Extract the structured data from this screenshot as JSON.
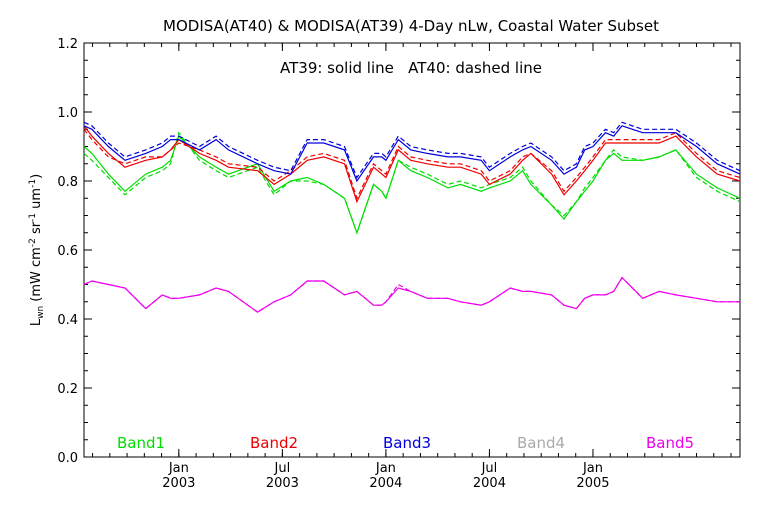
{
  "chart_data": {
    "type": "line",
    "title": "MODISA(AT40) & MODISA(AT39) 4-Day nLw, Coastal Water Subset",
    "annotation": "AT39: solid line   AT40: dashed line",
    "ylabel": "L_wn (mW cm^-2 sr^-1 um^-1)",
    "ylabel_parts": {
      "main": "L",
      "sub": "wn",
      "units_a": " (mW cm",
      "sup1": "-2",
      "units_b": " sr",
      "sup2": "-1",
      "units_c": " um",
      "sup3": "-1",
      "units_d": ")"
    },
    "ylim": [
      0.0,
      1.2
    ],
    "yticks": [
      "0.0",
      "0.2",
      "0.4",
      "0.6",
      "0.8",
      "1.0",
      "1.2"
    ],
    "xlim": [
      2002.542,
      2005.71
    ],
    "xticks": [
      {
        "x": 2003.0,
        "month": "Jan",
        "year": "2003"
      },
      {
        "x": 2003.5,
        "month": "Jul",
        "year": "2003"
      },
      {
        "x": 2004.0,
        "month": "Jan",
        "year": "2004"
      },
      {
        "x": 2004.5,
        "month": "Jul",
        "year": "2004"
      },
      {
        "x": 2005.0,
        "month": "Jan",
        "year": "2005"
      }
    ],
    "x": [
      2002.542,
      2002.58,
      2002.66,
      2002.74,
      2002.84,
      2002.92,
      2002.96,
      2003.0,
      2003.1,
      2003.18,
      2003.24,
      2003.38,
      2003.46,
      2003.54,
      2003.62,
      2003.7,
      2003.8,
      2003.86,
      2003.94,
      2003.98,
      2004.0,
      2004.06,
      2004.12,
      2004.2,
      2004.3,
      2004.36,
      2004.46,
      2004.5,
      2004.6,
      2004.66,
      2004.7,
      2004.8,
      2004.86,
      2004.92,
      2004.96,
      2005.0,
      2005.06,
      2005.1,
      2005.14,
      2005.24,
      2005.32,
      2005.4,
      2005.5,
      2005.6,
      2005.71
    ],
    "series": [
      {
        "name": "Band1",
        "color": "#00dd00",
        "at39": [
          0.9,
          0.88,
          0.82,
          0.77,
          0.82,
          0.84,
          0.86,
          0.93,
          0.87,
          0.84,
          0.82,
          0.85,
          0.77,
          0.8,
          0.81,
          0.79,
          0.75,
          0.65,
          0.79,
          0.77,
          0.75,
          0.86,
          0.83,
          0.81,
          0.78,
          0.79,
          0.77,
          0.78,
          0.8,
          0.83,
          0.79,
          0.73,
          0.69,
          0.74,
          0.77,
          0.8,
          0.86,
          0.88,
          0.86,
          0.86,
          0.87,
          0.89,
          0.82,
          0.78,
          0.75
        ],
        "at40": [
          0.88,
          0.86,
          0.81,
          0.76,
          0.81,
          0.83,
          0.85,
          0.94,
          0.86,
          0.83,
          0.81,
          0.84,
          0.76,
          0.8,
          0.8,
          0.79,
          0.75,
          0.65,
          0.79,
          0.77,
          0.75,
          0.86,
          0.84,
          0.82,
          0.79,
          0.8,
          0.78,
          0.79,
          0.81,
          0.84,
          0.8,
          0.73,
          0.7,
          0.74,
          0.78,
          0.81,
          0.86,
          0.89,
          0.87,
          0.86,
          0.87,
          0.89,
          0.81,
          0.77,
          0.74
        ]
      },
      {
        "name": "Band2",
        "color": "#ee0000",
        "at39": [
          0.96,
          0.93,
          0.88,
          0.84,
          0.86,
          0.87,
          0.89,
          0.92,
          0.88,
          0.86,
          0.84,
          0.83,
          0.79,
          0.82,
          0.86,
          0.87,
          0.85,
          0.74,
          0.84,
          0.82,
          0.81,
          0.89,
          0.86,
          0.85,
          0.84,
          0.84,
          0.82,
          0.79,
          0.82,
          0.86,
          0.88,
          0.82,
          0.76,
          0.8,
          0.83,
          0.86,
          0.91,
          0.91,
          0.91,
          0.91,
          0.91,
          0.93,
          0.87,
          0.82,
          0.8
        ],
        "at40": [
          0.95,
          0.92,
          0.87,
          0.85,
          0.87,
          0.87,
          0.89,
          0.91,
          0.89,
          0.87,
          0.85,
          0.84,
          0.8,
          0.83,
          0.87,
          0.88,
          0.86,
          0.75,
          0.85,
          0.83,
          0.82,
          0.9,
          0.87,
          0.86,
          0.85,
          0.85,
          0.83,
          0.8,
          0.83,
          0.87,
          0.88,
          0.83,
          0.77,
          0.81,
          0.84,
          0.87,
          0.92,
          0.92,
          0.92,
          0.92,
          0.92,
          0.94,
          0.88,
          0.83,
          0.81
        ]
      },
      {
        "name": "Band3",
        "color": "#0000dd",
        "at39": [
          0.96,
          0.95,
          0.9,
          0.86,
          0.88,
          0.9,
          0.92,
          0.92,
          0.89,
          0.92,
          0.89,
          0.85,
          0.83,
          0.82,
          0.91,
          0.91,
          0.89,
          0.8,
          0.87,
          0.87,
          0.86,
          0.92,
          0.89,
          0.88,
          0.87,
          0.87,
          0.86,
          0.83,
          0.87,
          0.89,
          0.9,
          0.86,
          0.82,
          0.84,
          0.89,
          0.9,
          0.94,
          0.93,
          0.96,
          0.94,
          0.94,
          0.94,
          0.9,
          0.85,
          0.82
        ],
        "at40": [
          0.97,
          0.96,
          0.91,
          0.87,
          0.89,
          0.91,
          0.93,
          0.93,
          0.9,
          0.93,
          0.9,
          0.86,
          0.84,
          0.83,
          0.92,
          0.92,
          0.9,
          0.81,
          0.88,
          0.88,
          0.87,
          0.93,
          0.9,
          0.89,
          0.88,
          0.88,
          0.87,
          0.84,
          0.88,
          0.9,
          0.91,
          0.87,
          0.83,
          0.85,
          0.9,
          0.91,
          0.95,
          0.94,
          0.97,
          0.95,
          0.95,
          0.95,
          0.91,
          0.86,
          0.83
        ]
      },
      {
        "name": "Band4",
        "color": "#aaaaaa",
        "at39": [],
        "at40": []
      },
      {
        "name": "Band5",
        "color": "#ee00ee",
        "at39": [
          0.5,
          0.51,
          0.5,
          0.49,
          0.43,
          0.47,
          0.46,
          0.46,
          0.47,
          0.49,
          0.48,
          0.42,
          0.45,
          0.47,
          0.51,
          0.51,
          0.47,
          0.48,
          0.44,
          0.44,
          0.45,
          0.49,
          0.48,
          0.46,
          0.46,
          0.45,
          0.44,
          0.45,
          0.49,
          0.48,
          0.48,
          0.47,
          0.44,
          0.43,
          0.46,
          0.47,
          0.47,
          0.48,
          0.52,
          0.46,
          0.48,
          0.47,
          0.46,
          0.45,
          0.45
        ],
        "at40": [
          0.5,
          0.51,
          0.5,
          0.49,
          0.43,
          0.47,
          0.46,
          0.46,
          0.47,
          0.49,
          0.48,
          0.42,
          0.45,
          0.47,
          0.51,
          0.51,
          0.47,
          0.48,
          0.44,
          0.44,
          0.45,
          0.5,
          0.48,
          0.46,
          0.46,
          0.45,
          0.44,
          0.45,
          0.49,
          0.48,
          0.48,
          0.47,
          0.44,
          0.43,
          0.46,
          0.47,
          0.47,
          0.48,
          0.52,
          0.46,
          0.48,
          0.47,
          0.46,
          0.45,
          0.45
        ]
      }
    ],
    "legend_placement": "bottom, inside plot, horizontal",
    "grid": false
  }
}
